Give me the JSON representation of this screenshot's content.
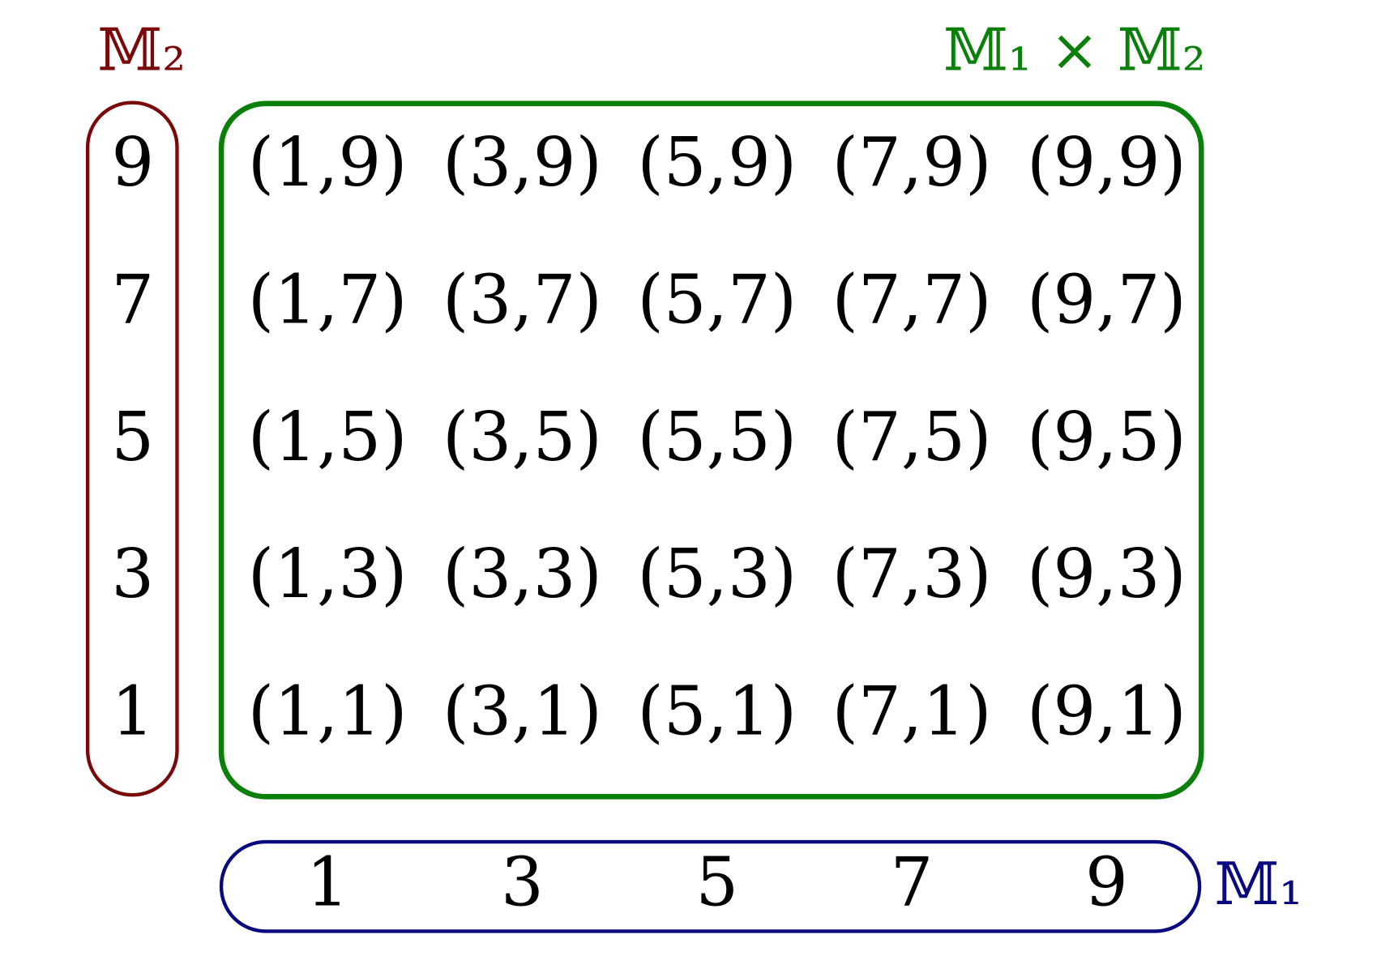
{
  "m2": {
    "label": "𝕄₂",
    "values": [
      "9",
      "7",
      "5",
      "3",
      "1"
    ]
  },
  "m1": {
    "label": "𝕄₁",
    "values": [
      "1",
      "3",
      "5",
      "7",
      "9"
    ]
  },
  "product": {
    "label": "𝕄₁ × 𝕄₂",
    "rows": [
      [
        "(1,9)",
        "(3,9)",
        "(5,9)",
        "(7,9)",
        "(9,9)"
      ],
      [
        "(1,7)",
        "(3,7)",
        "(5,7)",
        "(7,7)",
        "(9,7)"
      ],
      [
        "(1,5)",
        "(3,5)",
        "(5,5)",
        "(7,5)",
        "(9,5)"
      ],
      [
        "(1,3)",
        "(3,3)",
        "(5,3)",
        "(7,3)",
        "(9,3)"
      ],
      [
        "(1,1)",
        "(3,1)",
        "(5,1)",
        "(7,1)",
        "(9,1)"
      ]
    ]
  }
}
